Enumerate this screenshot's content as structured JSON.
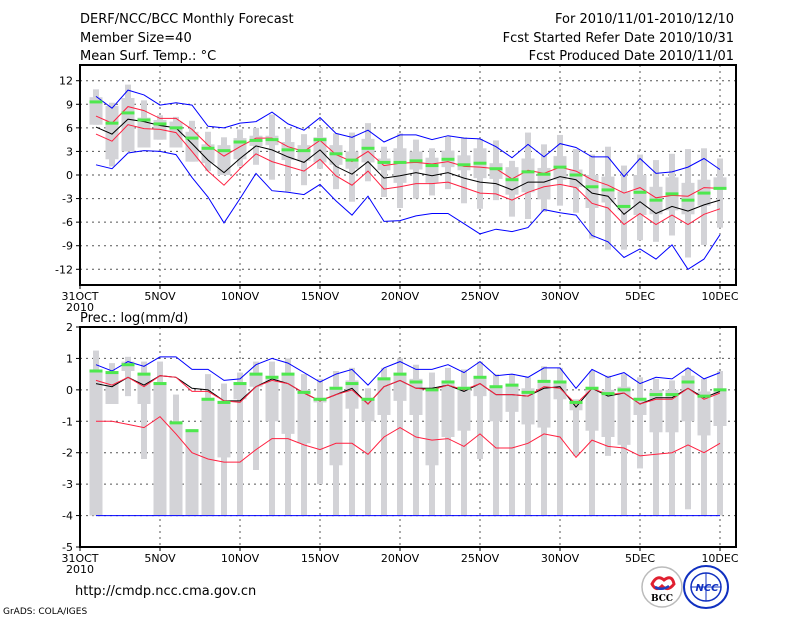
{
  "header": {
    "title": "DERF/NCC/BCC Monthly Forecast",
    "member_size": "Member Size=40",
    "variable": "Mean Surf. Temp.: °C",
    "period": "For 2010/11/01-2010/12/10",
    "start_date": "Fcst Started Refer Date 2010/10/31",
    "produced_date": "Fcst Produced Date 2010/11/01"
  },
  "footer": {
    "url": "http://cmdp.ncc.cma.gov.cn",
    "credit": "GrADS: COLA/IGES",
    "logos": [
      "BCC",
      "NCC"
    ]
  },
  "colors": {
    "box": "#d3d3d7",
    "median": "#4ee84e",
    "mean": "#000000",
    "spread": "#ff2040",
    "extreme": "#0000ff"
  },
  "chart_data": [
    {
      "type": "box-line",
      "title": "Mean Surf. Temp.: °C",
      "xlabel": "",
      "ylabel": "°C",
      "ylim": [
        -14,
        14
      ],
      "yticks": [
        "12",
        "9",
        "6",
        "3",
        "0",
        "-3",
        "-6",
        "-9",
        "-12"
      ],
      "ytick_values": [
        12,
        9,
        6,
        3,
        0,
        -3,
        -6,
        -9,
        -12
      ],
      "xticks": [
        "31OCT",
        "5NOV",
        "10NOV",
        "15NOV",
        "20NOV",
        "25NOV",
        "30NOV",
        "5DEC",
        "10DEC"
      ],
      "xtick_days": [
        0,
        5,
        10,
        15,
        20,
        25,
        30,
        35,
        40
      ],
      "x_sublabel": "2010",
      "grid": true,
      "days": [
        1,
        2,
        3,
        4,
        5,
        6,
        7,
        8,
        9,
        10,
        11,
        12,
        13,
        14,
        15,
        16,
        17,
        18,
        19,
        20,
        21,
        22,
        23,
        24,
        25,
        26,
        27,
        28,
        29,
        30,
        31,
        32,
        33,
        34,
        35,
        36,
        37,
        38,
        39,
        40
      ],
      "box_max": [
        10.9,
        9.2,
        11.5,
        9.5,
        7.6,
        7.4,
        6.9,
        5.5,
        4.8,
        5.8,
        6.0,
        7.7,
        5.9,
        5.2,
        6.0,
        5.3,
        5.4,
        6.6,
        3.6,
        5.3,
        4.5,
        3.4,
        4.9,
        4.8,
        4.6,
        4.4,
        1.8,
        5.4,
        3.9,
        5.1,
        3.3,
        2.6,
        3.6,
        1.2,
        2.6,
        1.9,
        2.7,
        3.3,
        3.4,
        2.1
      ],
      "box_q3": [
        9.9,
        8.8,
        9.8,
        7.3,
        7.0,
        6.8,
        5.5,
        3.9,
        3.8,
        4.7,
        5.0,
        5.0,
        4.2,
        3.8,
        4.8,
        3.8,
        3.0,
        4.6,
        2.1,
        3.4,
        3.0,
        2.2,
        3.1,
        2.5,
        3.4,
        1.5,
        1.0,
        2.1,
        0.9,
        2.4,
        0.7,
        0.0,
        -0.2,
        -2.1,
        0.0,
        -1.5,
        -0.3,
        -1.0,
        -0.6,
        -0.3
      ],
      "box_q1": [
        6.4,
        2.0,
        3.0,
        3.5,
        4.5,
        3.5,
        1.7,
        1.5,
        0.0,
        2.0,
        3.7,
        3.8,
        1.9,
        1.8,
        1.6,
        1.3,
        0.8,
        1.6,
        0.6,
        -1.0,
        0.7,
        -1.0,
        1.0,
        0.6,
        -0.4,
        -0.5,
        -2.5,
        -2.2,
        -3.1,
        -0.6,
        -1.5,
        -4.2,
        -3.5,
        -4.5,
        -5.1,
        -5.0,
        -4.5,
        -5.0,
        -3.9,
        -1.6
      ],
      "box_min": [
        6.4,
        1.1,
        3.0,
        3.5,
        4.5,
        3.5,
        1.7,
        0.5,
        0.0,
        1.1,
        1.3,
        -0.6,
        -2.1,
        -1.3,
        0.8,
        -1.8,
        -3.4,
        -0.8,
        -2.8,
        -4.2,
        -3.0,
        -2.6,
        -1.8,
        -3.6,
        -4.3,
        -3.2,
        -5.3,
        -5.6,
        -4.7,
        -3.9,
        -4.8,
        -8.1,
        -9.5,
        -9.5,
        -8.3,
        -8.5,
        -7.7,
        -10.5,
        -8.9,
        -6.7
      ],
      "median": [
        9.3,
        6.6,
        7.9,
        7.0,
        6.5,
        6.0,
        4.7,
        3.4,
        3.1,
        4.2,
        4.4,
        4.5,
        3.2,
        3.1,
        4.5,
        2.7,
        1.9,
        3.4,
        1.6,
        1.6,
        1.8,
        1.2,
        2.0,
        1.3,
        1.5,
        0.8,
        -0.6,
        0.4,
        0.1,
        1.0,
        0.0,
        -1.5,
        -1.9,
        -4.0,
        -2.2,
        -3.2,
        -2.4,
        -3.2,
        -2.3,
        -1.7
      ],
      "series": [
        {
          "name": "ensemble-mean",
          "color": "#000000",
          "values": [
            6.1,
            5.2,
            7.1,
            6.8,
            6.3,
            6.0,
            4.0,
            1.9,
            0.3,
            2.1,
            3.7,
            3.2,
            2.3,
            1.6,
            3.2,
            1.1,
            0.1,
            1.7,
            -0.4,
            -0.1,
            0.3,
            -0.1,
            0.3,
            -0.4,
            -0.9,
            -1.1,
            -1.9,
            -0.9,
            -0.9,
            -0.2,
            -0.6,
            -2.3,
            -2.7,
            -5.0,
            -3.4,
            -4.9,
            -4.0,
            -4.6,
            -3.8,
            -3.2
          ]
        },
        {
          "name": "upper-spread",
          "color": "#ff2040",
          "values": [
            7.5,
            6.6,
            8.7,
            8.2,
            7.2,
            7.2,
            5.8,
            3.8,
            2.4,
            3.6,
            4.7,
            4.7,
            3.6,
            3.0,
            4.4,
            2.6,
            1.7,
            3.0,
            1.2,
            1.5,
            1.6,
            1.4,
            1.7,
            1.1,
            1.0,
            0.8,
            -0.5,
            0.6,
            0.2,
            1.0,
            0.5,
            -0.6,
            -1.3,
            -2.3,
            -1.6,
            -2.9,
            -2.6,
            -2.7,
            -1.6,
            -1.7
          ]
        },
        {
          "name": "lower-spread",
          "color": "#ff2040",
          "values": [
            5.2,
            4.3,
            6.4,
            5.9,
            5.8,
            5.4,
            3.0,
            0.5,
            -1.3,
            0.8,
            2.7,
            1.7,
            1.1,
            0.5,
            2.0,
            -0.1,
            -1.3,
            0.5,
            -1.8,
            -1.5,
            -1.1,
            -1.1,
            -0.9,
            -1.6,
            -2.3,
            -2.4,
            -3.2,
            -2.2,
            -1.5,
            -1.2,
            -1.6,
            -3.6,
            -4.2,
            -6.3,
            -4.9,
            -6.3,
            -5.1,
            -6.3,
            -5.0,
            -4.3
          ]
        },
        {
          "name": "upper-extreme",
          "color": "#0000ff",
          "values": [
            10.0,
            8.5,
            10.8,
            10.2,
            8.9,
            9.2,
            8.9,
            6.2,
            6.0,
            6.6,
            6.8,
            8.0,
            6.5,
            5.7,
            7.3,
            5.3,
            4.8,
            5.7,
            4.2,
            5.1,
            5.1,
            4.5,
            5.0,
            4.7,
            4.6,
            3.6,
            2.2,
            3.9,
            2.3,
            4.0,
            3.5,
            2.3,
            2.3,
            -0.2,
            2.1,
            0.2,
            0.4,
            1.0,
            2.1,
            0.7
          ]
        },
        {
          "name": "lower-extreme",
          "color": "#0000ff",
          "values": [
            1.3,
            0.8,
            2.8,
            3.1,
            3.0,
            2.6,
            -0.3,
            -2.8,
            -6.1,
            -3.0,
            0.2,
            -2.0,
            -2.2,
            -2.5,
            -1.2,
            -3.3,
            -5.1,
            -2.7,
            -5.9,
            -5.8,
            -5.2,
            -4.9,
            -4.9,
            -6.2,
            -7.5,
            -6.9,
            -7.2,
            -6.7,
            -4.4,
            -4.8,
            -5.1,
            -7.7,
            -8.5,
            -10.5,
            -9.4,
            -10.7,
            -8.9,
            -12.0,
            -10.7,
            -7.6
          ]
        }
      ]
    },
    {
      "type": "box-line",
      "title": "Prec.: log(mm/d)",
      "xlabel": "",
      "ylabel": "log(mm/d)",
      "ylim": [
        -5,
        2
      ],
      "yticks": [
        "2",
        "1",
        "0",
        "-1",
        "-2",
        "-3",
        "-4",
        "-5"
      ],
      "ytick_values": [
        2,
        1,
        0,
        -1,
        -2,
        -3,
        -4,
        -5
      ],
      "xticks": [
        "31OCT",
        "5NOV",
        "10NOV",
        "15NOV",
        "20NOV",
        "25NOV",
        "30NOV",
        "5DEC",
        "10DEC"
      ],
      "xtick_days": [
        0,
        5,
        10,
        15,
        20,
        25,
        30,
        35,
        40
      ],
      "x_sublabel": "2010",
      "grid": true,
      "days": [
        1,
        2,
        3,
        4,
        5,
        6,
        7,
        8,
        9,
        10,
        11,
        12,
        13,
        14,
        15,
        16,
        17,
        18,
        19,
        20,
        21,
        22,
        23,
        24,
        25,
        26,
        27,
        28,
        29,
        30,
        31,
        32,
        33,
        34,
        35,
        36,
        37,
        38,
        39,
        40
      ],
      "box_max": [
        1.25,
        0.85,
        1.05,
        0.9,
        0.9,
        -0.15,
        -1.25,
        0.5,
        0.2,
        0.55,
        0.9,
        0.9,
        1.0,
        0.5,
        0.35,
        0.6,
        0.7,
        0.05,
        0.7,
        1.0,
        0.8,
        0.55,
        0.7,
        0.65,
        0.9,
        0.5,
        0.5,
        0.4,
        0.75,
        0.7,
        -0.3,
        0.6,
        0.45,
        0.5,
        0.4,
        0.35,
        0.3,
        0.7,
        0.35,
        0.6
      ],
      "box_q3": [
        0.65,
        0.6,
        0.9,
        0.55,
        0.25,
        -1.0,
        -1.25,
        -0.25,
        -0.35,
        0.25,
        0.55,
        0.45,
        0.55,
        0.0,
        -0.25,
        0.1,
        0.3,
        -0.25,
        0.4,
        0.55,
        0.35,
        0.05,
        0.3,
        0.1,
        0.4,
        0.1,
        0.2,
        0.05,
        0.3,
        0.3,
        -0.35,
        0.1,
        0.0,
        0.1,
        -0.25,
        0.0,
        0.0,
        0.45,
        -0.05,
        0.05
      ],
      "box_q1": [
        -4,
        -0.45,
        0.6,
        -0.45,
        -4,
        -4,
        -4,
        -4,
        -2.15,
        -0.3,
        0.1,
        -1.0,
        -1.4,
        -1.7,
        -0.4,
        -2.4,
        -0.6,
        -1.0,
        -0.8,
        -0.35,
        -0.8,
        -2.4,
        -1.5,
        -1.3,
        -0.2,
        -1.0,
        -0.7,
        -1.1,
        -1.2,
        -0.3,
        -0.65,
        -1.3,
        -1.5,
        -1.75,
        -0.8,
        -1.35,
        -1.35,
        -1.0,
        -1.45,
        -1.15
      ],
      "box_min": [
        -4,
        -0.45,
        -0.2,
        -2.2,
        -4,
        -4,
        -4,
        -4,
        -4,
        -4,
        -2.55,
        -4,
        -4,
        -4,
        -3.0,
        -4,
        -4,
        -4,
        -4,
        -4,
        -4,
        -4,
        -4,
        -4,
        -2.2,
        -4,
        -4,
        -4,
        -4,
        -4,
        -2.1,
        -4,
        -2.1,
        -4,
        -2.5,
        -4,
        -4,
        -3.8,
        -4,
        -4
      ],
      "median": [
        0.6,
        0.55,
        0.8,
        0.5,
        0.2,
        -1.05,
        -1.3,
        -0.3,
        -0.4,
        0.2,
        0.5,
        0.4,
        0.5,
        -0.08,
        -0.3,
        0.05,
        0.2,
        -0.3,
        0.35,
        0.5,
        0.25,
        0.0,
        0.25,
        0.05,
        0.4,
        0.1,
        0.15,
        -0.08,
        0.27,
        0.25,
        -0.4,
        0.05,
        -0.12,
        0.0,
        -0.3,
        -0.15,
        -0.15,
        0.25,
        -0.2,
        0.0
      ],
      "series": [
        {
          "name": "ensemble-mean",
          "color": "#000000",
          "values": [
            0.2,
            0.1,
            0.4,
            0.15,
            0.45,
            0.4,
            0.05,
            0.0,
            -0.35,
            -0.35,
            0.1,
            0.35,
            0.2,
            -0.1,
            -0.35,
            -0.15,
            0.05,
            -0.45,
            0.1,
            0.3,
            0.05,
            0.05,
            0.15,
            -0.05,
            0.2,
            -0.15,
            -0.15,
            -0.2,
            0.05,
            0.1,
            -0.55,
            0.05,
            -0.2,
            -0.1,
            -0.45,
            -0.25,
            -0.25,
            0.05,
            -0.25,
            -0.05
          ]
        },
        {
          "name": "upper-spread",
          "color": "#ff2040",
          "values": [
            0.3,
            0.15,
            0.4,
            0.1,
            0.45,
            0.4,
            -0.05,
            -0.05,
            -0.35,
            -0.4,
            0.1,
            0.3,
            0.2,
            -0.1,
            -0.35,
            -0.15,
            0.0,
            -0.45,
            0.1,
            0.3,
            0.05,
            0.0,
            0.15,
            0.0,
            0.2,
            -0.15,
            -0.15,
            -0.2,
            0.1,
            0.05,
            -0.45,
            0.05,
            -0.15,
            -0.1,
            -0.45,
            -0.3,
            -0.3,
            0.05,
            -0.3,
            -0.1
          ]
        },
        {
          "name": "lower-spread",
          "color": "#ff2040",
          "values": [
            -1.0,
            -1.0,
            -1.1,
            -1.2,
            -0.85,
            -1.4,
            -2.0,
            -2.2,
            -2.3,
            -2.3,
            -1.9,
            -1.55,
            -1.55,
            -1.75,
            -1.9,
            -1.7,
            -1.7,
            -2.05,
            -1.5,
            -1.2,
            -1.5,
            -1.6,
            -1.55,
            -1.8,
            -1.4,
            -1.85,
            -1.85,
            -1.7,
            -1.4,
            -1.5,
            -2.15,
            -1.6,
            -1.8,
            -1.85,
            -2.1,
            -2.05,
            -2.0,
            -1.75,
            -2.0,
            -1.7
          ]
        },
        {
          "name": "upper-extreme",
          "color": "#0000ff",
          "values": [
            0.8,
            0.6,
            0.9,
            0.75,
            1.05,
            1.05,
            0.65,
            0.65,
            0.3,
            0.35,
            0.8,
            1.0,
            0.85,
            0.55,
            0.25,
            0.5,
            0.65,
            0.15,
            0.7,
            0.9,
            0.65,
            0.65,
            0.8,
            0.55,
            0.9,
            0.45,
            0.5,
            0.4,
            0.7,
            0.7,
            0.05,
            0.65,
            0.4,
            0.55,
            0.2,
            0.4,
            0.35,
            0.7,
            0.35,
            0.55
          ]
        },
        {
          "name": "lower-extreme",
          "color": "#0000ff",
          "values": [
            -4,
            -4,
            -4,
            -4,
            -4,
            -4,
            -4,
            -4,
            -4,
            -4,
            -4,
            -4,
            -4,
            -4,
            -4,
            -4,
            -4,
            -4,
            -4,
            -4,
            -4,
            -4,
            -4,
            -4,
            -4,
            -4,
            -4,
            -4,
            -4,
            -4,
            -4,
            -4,
            -4,
            -4,
            -4,
            -4,
            -4,
            -4,
            -4,
            -4
          ]
        }
      ]
    }
  ]
}
